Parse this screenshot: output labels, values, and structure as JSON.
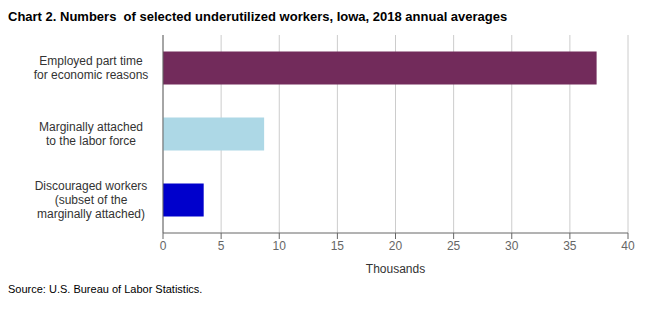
{
  "chart_data": {
    "type": "bar",
    "orientation": "horizontal",
    "title": "Chart 2. Numbers  of selected underutilized workers, Iowa, 2018 annual averages",
    "categories": [
      "Discouraged workers\n(subset of the\nmarginally attached)",
      "Marginally attached\nto the labor force",
      "Employed part time\nfor economic reasons"
    ],
    "values": [
      3.5,
      8.7,
      37.3
    ],
    "colors": [
      "#0000CC",
      "#ADD8E6",
      "#722B5B"
    ],
    "xlabel": "Thousands",
    "xlim": [
      0,
      40
    ],
    "xticks": [
      0,
      5,
      10,
      15,
      20,
      25,
      30,
      35,
      40
    ],
    "grid": true,
    "annotations": [
      "Source: U.S. Bureau of Labor Statistics."
    ]
  }
}
